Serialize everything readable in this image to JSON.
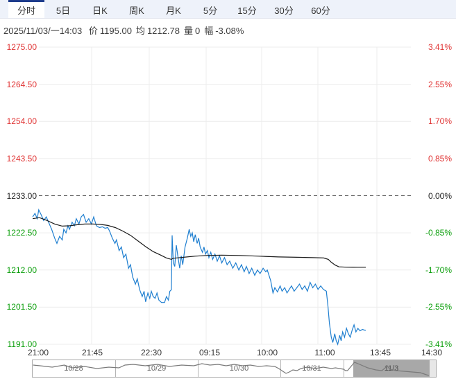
{
  "tabs": {
    "active_index": 0,
    "items": [
      "分时",
      "5日",
      "日K",
      "周K",
      "月K",
      "5分",
      "15分",
      "30分",
      "60分"
    ]
  },
  "info": {
    "datetime": "2025/11/03/一14:03",
    "fields": [
      {
        "label": "价",
        "value": "1195.00"
      },
      {
        "label": "均",
        "value": "1212.78"
      },
      {
        "label": "量",
        "value": "0"
      },
      {
        "label": "幅",
        "value": "-3.08%"
      }
    ]
  },
  "colors": {
    "up": "#e03434",
    "down": "#0a9e0a",
    "flat": "#222222",
    "price_line": "#1f7fd0",
    "avg_line": "#1a1a1a",
    "grid": "#ececec",
    "zero_dash": "#555555",
    "tab_accent": "#1e3c8c",
    "nav_spark": "#7a7a7a"
  },
  "chart_data": {
    "type": "line",
    "title": "分时 (intraday price vs average)",
    "prev_close": 1233.0,
    "ylim": [
      1191.0,
      1275.0
    ],
    "grid": true,
    "y_axis_left_prices": [
      "1275.00",
      "1264.50",
      "1254.00",
      "1243.50",
      "1233.00",
      "1222.50",
      "1212.00",
      "1201.50",
      "1191.00"
    ],
    "y_axis_right_pct": [
      "3.41%",
      "2.55%",
      "1.70%",
      "0.85%",
      "0.00%",
      "-0.85%",
      "-1.70%",
      "-2.55%",
      "-3.41%"
    ],
    "x_ticks": [
      "21:00",
      "21:45",
      "22:30",
      "09:15",
      "10:00",
      "11:00",
      "13:45",
      "14:30"
    ],
    "series": [
      {
        "name": "price",
        "color_key": "price_line",
        "points": [
          [
            0.002,
            1227.0
          ],
          [
            0.008,
            1228.0
          ],
          [
            0.014,
            1226.5
          ],
          [
            0.018,
            1229.0
          ],
          [
            0.025,
            1227.5
          ],
          [
            0.031,
            1226.0
          ],
          [
            0.038,
            1227.0
          ],
          [
            0.044,
            1225.5
          ],
          [
            0.052,
            1223.5
          ],
          [
            0.06,
            1221.0
          ],
          [
            0.066,
            1219.5
          ],
          [
            0.073,
            1221.5
          ],
          [
            0.08,
            1220.5
          ],
          [
            0.084,
            1223.5
          ],
          [
            0.09,
            1222.5
          ],
          [
            0.095,
            1224.5
          ],
          [
            0.099,
            1223.5
          ],
          [
            0.106,
            1225.5
          ],
          [
            0.112,
            1224.5
          ],
          [
            0.117,
            1226.5
          ],
          [
            0.124,
            1225.0
          ],
          [
            0.13,
            1227.0
          ],
          [
            0.136,
            1227.7
          ],
          [
            0.143,
            1225.5
          ],
          [
            0.15,
            1226.5
          ],
          [
            0.157,
            1225.0
          ],
          [
            0.163,
            1227.0
          ],
          [
            0.17,
            1224.5
          ],
          [
            0.178,
            1224.0
          ],
          [
            0.186,
            1224.2
          ],
          [
            0.193,
            1223.8
          ],
          [
            0.2,
            1224.0
          ],
          [
            0.205,
            1223.0
          ],
          [
            0.212,
            1221.0
          ],
          [
            0.219,
            1219.5
          ],
          [
            0.223,
            1220.5
          ],
          [
            0.23,
            1217.5
          ],
          [
            0.236,
            1218.5
          ],
          [
            0.242,
            1215.5
          ],
          [
            0.248,
            1216.5
          ],
          [
            0.255,
            1212.5
          ],
          [
            0.26,
            1213.5
          ],
          [
            0.266,
            1210.0
          ],
          [
            0.273,
            1208.0
          ],
          [
            0.278,
            1209.5
          ],
          [
            0.284,
            1206.5
          ],
          [
            0.291,
            1204.5
          ],
          [
            0.296,
            1206.0
          ],
          [
            0.3,
            1203.0
          ],
          [
            0.306,
            1205.5
          ],
          [
            0.311,
            1204.0
          ],
          [
            0.315,
            1206.0
          ],
          [
            0.32,
            1204.5
          ],
          [
            0.325,
            1204.0
          ],
          [
            0.33,
            1205.5
          ],
          [
            0.335,
            1203.5
          ],
          [
            0.342,
            1202.8
          ],
          [
            0.35,
            1202.8
          ],
          [
            0.355,
            1204.5
          ],
          [
            0.36,
            1203.5
          ],
          [
            0.364,
            1206.0
          ],
          [
            0.368,
            1206.4
          ],
          [
            0.37,
            1221.8
          ],
          [
            0.373,
            1214.0
          ],
          [
            0.377,
            1213.0
          ],
          [
            0.381,
            1219.0
          ],
          [
            0.385,
            1216.0
          ],
          [
            0.39,
            1212.5
          ],
          [
            0.394,
            1216.0
          ],
          [
            0.398,
            1213.5
          ],
          [
            0.404,
            1218.5
          ],
          [
            0.41,
            1221.0
          ],
          [
            0.415,
            1223.5
          ],
          [
            0.419,
            1221.5
          ],
          [
            0.423,
            1222.5
          ],
          [
            0.427,
            1220.0
          ],
          [
            0.431,
            1222.0
          ],
          [
            0.436,
            1219.5
          ],
          [
            0.44,
            1221.0
          ],
          [
            0.444,
            1218.5
          ],
          [
            0.45,
            1217.0
          ],
          [
            0.454,
            1218.5
          ],
          [
            0.458,
            1216.5
          ],
          [
            0.463,
            1217.5
          ],
          [
            0.467,
            1215.5
          ],
          [
            0.472,
            1217.0
          ],
          [
            0.477,
            1215.0
          ],
          [
            0.483,
            1216.5
          ],
          [
            0.489,
            1214.5
          ],
          [
            0.495,
            1216.0
          ],
          [
            0.501,
            1214.0
          ],
          [
            0.508,
            1215.5
          ],
          [
            0.515,
            1213.5
          ],
          [
            0.522,
            1214.5
          ],
          [
            0.53,
            1212.5
          ],
          [
            0.538,
            1214.0
          ],
          [
            0.546,
            1212.0
          ],
          [
            0.553,
            1213.5
          ],
          [
            0.56,
            1211.5
          ],
          [
            0.566,
            1213.0
          ],
          [
            0.573,
            1211.0
          ],
          [
            0.58,
            1212.5
          ],
          [
            0.588,
            1210.5
          ],
          [
            0.595,
            1212.0
          ],
          [
            0.602,
            1211.0
          ],
          [
            0.61,
            1212.5
          ],
          [
            0.617,
            1211.5
          ],
          [
            0.621,
            1212.0
          ],
          [
            0.63,
            1209.0
          ],
          [
            0.636,
            1205.5
          ],
          [
            0.641,
            1207.0
          ],
          [
            0.648,
            1205.8
          ],
          [
            0.655,
            1207.5
          ],
          [
            0.66,
            1206.0
          ],
          [
            0.667,
            1207.0
          ],
          [
            0.673,
            1205.5
          ],
          [
            0.679,
            1206.5
          ],
          [
            0.685,
            1207.5
          ],
          [
            0.692,
            1206.0
          ],
          [
            0.699,
            1207.0
          ],
          [
            0.706,
            1208.0
          ],
          [
            0.713,
            1206.5
          ],
          [
            0.72,
            1207.5
          ],
          [
            0.727,
            1206.0
          ],
          [
            0.734,
            1208.5
          ],
          [
            0.741,
            1207.0
          ],
          [
            0.748,
            1208.0
          ],
          [
            0.755,
            1206.5
          ],
          [
            0.762,
            1207.5
          ],
          [
            0.769,
            1206.5
          ],
          [
            0.777,
            1206.0
          ],
          [
            0.781,
            1202.0
          ],
          [
            0.785,
            1197.0
          ],
          [
            0.79,
            1193.0
          ],
          [
            0.794,
            1191.5
          ],
          [
            0.799,
            1194.0
          ],
          [
            0.803,
            1192.0
          ],
          [
            0.807,
            1191.0
          ],
          [
            0.812,
            1193.5
          ],
          [
            0.816,
            1192.0
          ],
          [
            0.82,
            1194.5
          ],
          [
            0.825,
            1193.0
          ],
          [
            0.83,
            1195.5
          ],
          [
            0.835,
            1194.0
          ],
          [
            0.84,
            1193.0
          ],
          [
            0.845,
            1195.0
          ],
          [
            0.85,
            1196.5
          ],
          [
            0.855,
            1194.5
          ],
          [
            0.86,
            1195.5
          ],
          [
            0.866,
            1194.8
          ],
          [
            0.872,
            1195.2
          ],
          [
            0.878,
            1195.0
          ],
          [
            0.881,
            1195.0
          ]
        ]
      },
      {
        "name": "average",
        "color_key": "avg_line",
        "points": [
          [
            0.002,
            1226.5
          ],
          [
            0.02,
            1226.8
          ],
          [
            0.04,
            1226.0
          ],
          [
            0.06,
            1225.0
          ],
          [
            0.08,
            1224.4
          ],
          [
            0.1,
            1224.5
          ],
          [
            0.12,
            1224.8
          ],
          [
            0.14,
            1225.0
          ],
          [
            0.16,
            1225.0
          ],
          [
            0.18,
            1224.9
          ],
          [
            0.2,
            1224.6
          ],
          [
            0.22,
            1224.0
          ],
          [
            0.24,
            1223.0
          ],
          [
            0.26,
            1221.8
          ],
          [
            0.28,
            1220.2
          ],
          [
            0.3,
            1218.6
          ],
          [
            0.32,
            1217.2
          ],
          [
            0.34,
            1216.2
          ],
          [
            0.355,
            1215.4
          ],
          [
            0.368,
            1215.0
          ],
          [
            0.372,
            1215.3
          ],
          [
            0.4,
            1215.6
          ],
          [
            0.43,
            1215.9
          ],
          [
            0.46,
            1216.1
          ],
          [
            0.5,
            1216.2
          ],
          [
            0.55,
            1216.1
          ],
          [
            0.6,
            1215.9
          ],
          [
            0.65,
            1215.7
          ],
          [
            0.7,
            1215.6
          ],
          [
            0.74,
            1215.5
          ],
          [
            0.77,
            1215.4
          ],
          [
            0.782,
            1215.0
          ],
          [
            0.79,
            1214.2
          ],
          [
            0.8,
            1213.4
          ],
          [
            0.81,
            1212.9
          ],
          [
            0.83,
            1212.8
          ],
          [
            0.86,
            1212.78
          ],
          [
            0.881,
            1212.78
          ]
        ]
      }
    ],
    "navigator": {
      "dates": [
        "10/28",
        "10/29",
        "10/30",
        "10/31",
        "11/3"
      ],
      "spark": [
        [
          0.003,
          8
        ],
        [
          0.02,
          9
        ],
        [
          0.05,
          11
        ],
        [
          0.08,
          8
        ],
        [
          0.1,
          12
        ],
        [
          0.13,
          10
        ],
        [
          0.16,
          13
        ],
        [
          0.19,
          11
        ],
        [
          0.215,
          12
        ],
        [
          0.23,
          8
        ],
        [
          0.25,
          7
        ],
        [
          0.28,
          9
        ],
        [
          0.31,
          7
        ],
        [
          0.34,
          10
        ],
        [
          0.37,
          8
        ],
        [
          0.4,
          9
        ],
        [
          0.42,
          6
        ],
        [
          0.44,
          8
        ],
        [
          0.46,
          7
        ],
        [
          0.48,
          9
        ],
        [
          0.5,
          7
        ],
        [
          0.52,
          9
        ],
        [
          0.54,
          8
        ],
        [
          0.56,
          10
        ],
        [
          0.58,
          9
        ],
        [
          0.6,
          10
        ],
        [
          0.61,
          13
        ],
        [
          0.62,
          17
        ],
        [
          0.628,
          20
        ],
        [
          0.636,
          18
        ],
        [
          0.645,
          15
        ],
        [
          0.655,
          16
        ],
        [
          0.665,
          13
        ],
        [
          0.68,
          11
        ],
        [
          0.7,
          13
        ],
        [
          0.72,
          11
        ],
        [
          0.74,
          13
        ],
        [
          0.75,
          12
        ],
        [
          0.76,
          13
        ],
        [
          0.77,
          14
        ],
        [
          0.775,
          16
        ],
        [
          0.78,
          16
        ],
        [
          0.797,
          4
        ],
        [
          0.81,
          7
        ],
        [
          0.83,
          12
        ],
        [
          0.85,
          15
        ],
        [
          0.865,
          16
        ],
        [
          0.873,
          12
        ],
        [
          0.878,
          9
        ],
        [
          0.884,
          14
        ],
        [
          0.9,
          16
        ],
        [
          0.92,
          17
        ],
        [
          0.94,
          18
        ],
        [
          0.96,
          19
        ],
        [
          0.975,
          22
        ],
        [
          0.981,
          23
        ]
      ]
    }
  }
}
